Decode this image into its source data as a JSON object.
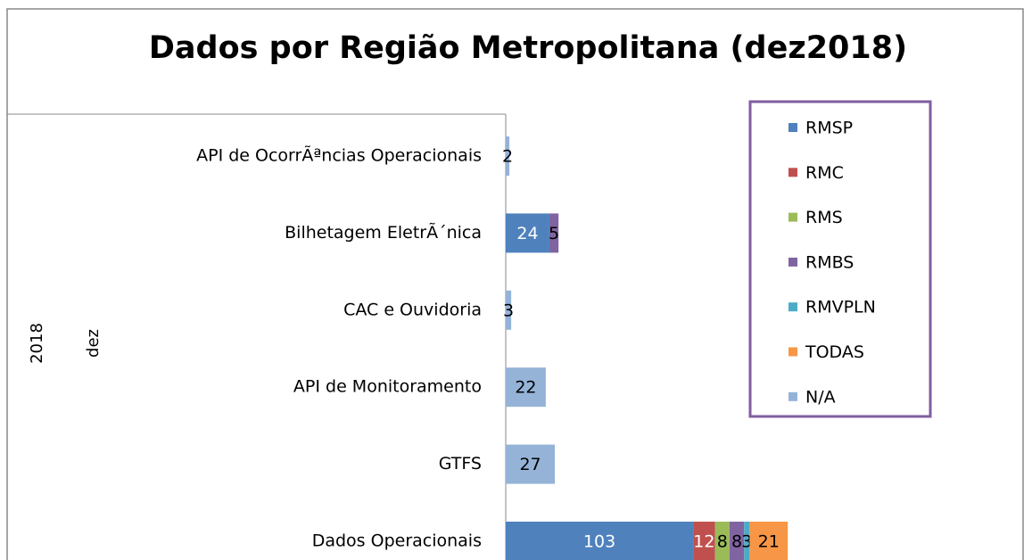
{
  "chart_data": {
    "type": "stacked-bar-horizontal",
    "title": "Dados por Região Metropolitana (dez2018)",
    "group_labels": [
      "2018",
      "dez"
    ],
    "categories": [
      "API de OcorrÃªncias Operacionais",
      "Bilhetagem EletrÃ´nica",
      "CAC e Ouvidoria",
      "API de Monitoramento",
      "GTFS",
      "Dados Operacionais"
    ],
    "series": [
      {
        "name": "RMSP",
        "color": "#4f81bd",
        "values": [
          null,
          24,
          null,
          null,
          null,
          103
        ]
      },
      {
        "name": "RMC",
        "color": "#c0504d",
        "values": [
          null,
          null,
          null,
          null,
          null,
          12
        ]
      },
      {
        "name": "RMS",
        "color": "#9bbb59",
        "values": [
          null,
          null,
          null,
          null,
          null,
          8
        ]
      },
      {
        "name": "RMBS",
        "color": "#8064a2",
        "values": [
          null,
          5,
          null,
          null,
          null,
          8
        ]
      },
      {
        "name": "RMVPLN",
        "color": "#4bacc6",
        "values": [
          null,
          null,
          null,
          null,
          null,
          3
        ]
      },
      {
        "name": "TODAS",
        "color": "#f79646",
        "values": [
          null,
          null,
          null,
          null,
          null,
          21
        ]
      },
      {
        "name": "N/A",
        "color": "#95b3d7",
        "values": [
          2,
          null,
          3,
          22,
          27,
          null
        ]
      }
    ],
    "legend": "right"
  }
}
